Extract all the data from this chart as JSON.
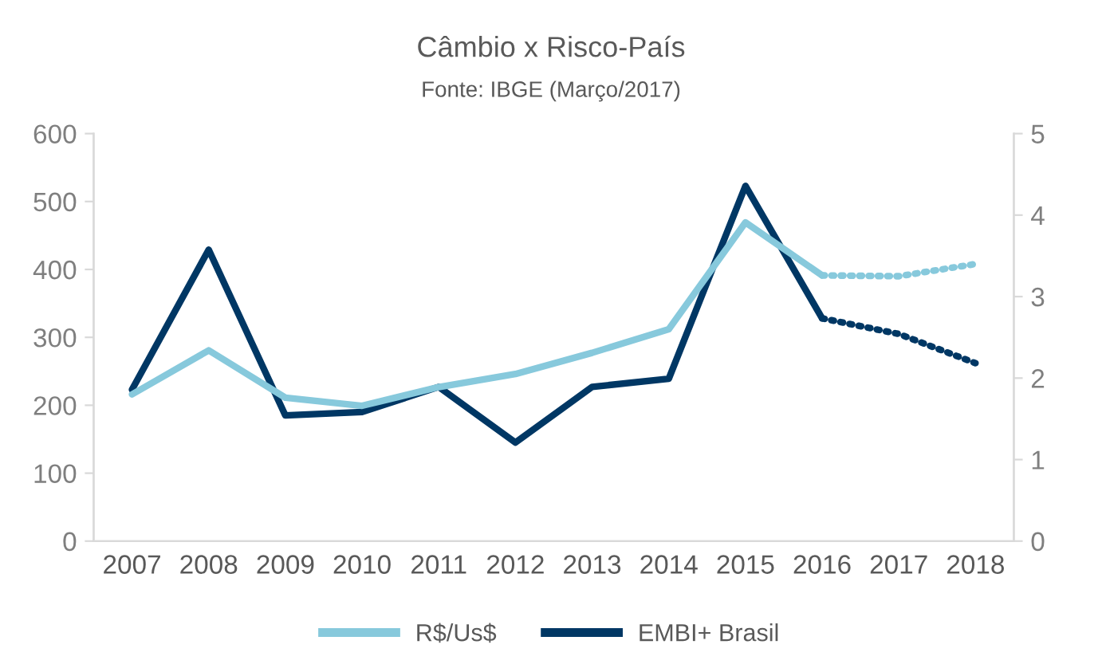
{
  "chart_data": {
    "type": "line",
    "title": "Câmbio x Risco-País",
    "subtitle": "Fonte: IBGE (Março/2017)",
    "categories": [
      "2007",
      "2008",
      "2009",
      "2010",
      "2011",
      "2012",
      "2013",
      "2014",
      "2015",
      "2016",
      "2017",
      "2018"
    ],
    "series": [
      {
        "name": "R$/Us$",
        "color": "#87c9dc",
        "axis": "y2",
        "line_style": "solid",
        "values": [
          1.8,
          2.34,
          1.76,
          1.66,
          1.89,
          2.05,
          2.31,
          2.6,
          3.91,
          3.26,
          null,
          null
        ]
      },
      {
        "name": "EMBI+ Brasil",
        "color": "#003764",
        "line_style": "solid",
        "values": [
          223,
          429,
          185,
          190,
          227,
          145,
          227,
          239,
          523,
          328,
          null,
          null
        ]
      },
      {
        "color": "#87c9dc",
        "axis": "y2",
        "line_style": "dotted",
        "values": [
          null,
          null,
          null,
          null,
          null,
          null,
          null,
          null,
          null,
          3.26,
          3.25,
          3.4
        ]
      },
      {
        "color": "#003764",
        "line_style": "dotted",
        "values": [
          null,
          null,
          null,
          null,
          null,
          null,
          null,
          null,
          null,
          328,
          305,
          262
        ]
      }
    ],
    "ylim": [
      0,
      600
    ],
    "yticks": [
      0,
      100,
      200,
      300,
      400,
      500,
      600
    ],
    "y2lim": [
      0,
      5
    ],
    "y2ticks": [
      0,
      1,
      2,
      3,
      4,
      5
    ],
    "grid": false,
    "legend": "bottom"
  }
}
